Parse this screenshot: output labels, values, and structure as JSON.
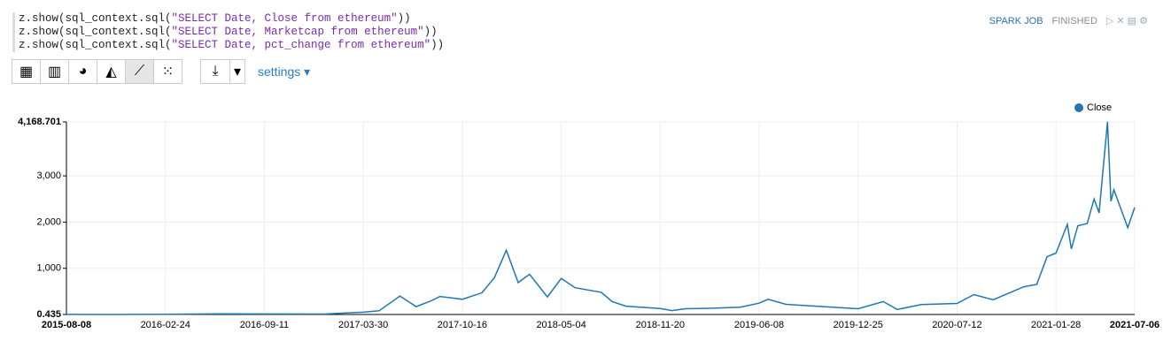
{
  "paragraph": {
    "code": [
      {
        "prefix": "z.show(sql_context.sql(",
        "string": "\"SELECT Date, Close from ethereum\"",
        "suffix": "))"
      },
      {
        "prefix": "z.show(sql_context.sql(",
        "string": "\"SELECT Date, Marketcap from ethereum\"",
        "suffix": "))"
      },
      {
        "prefix": "z.show(sql_context.sql(",
        "string": "\"SELECT Date, pct_change from ethereum\"",
        "suffix": "))"
      }
    ],
    "job": "SPARK JOB",
    "state": "FINISHED",
    "settings": "settings"
  },
  "chart_data": {
    "type": "line",
    "x": [
      "2015-08-08",
      "2015-11-01",
      "2016-02-24",
      "2016-06-15",
      "2016-09-11",
      "2017-01-10",
      "2017-03-30",
      "2017-05-01",
      "2017-06-12",
      "2017-07-15",
      "2017-08-15",
      "2017-09-01",
      "2017-10-16",
      "2017-11-25",
      "2017-12-20",
      "2018-01-13",
      "2018-02-06",
      "2018-03-01",
      "2018-04-06",
      "2018-05-04",
      "2018-06-01",
      "2018-07-24",
      "2018-08-15",
      "2018-09-12",
      "2018-11-20",
      "2018-12-14",
      "2019-01-10",
      "2019-03-01",
      "2019-05-01",
      "2019-06-08",
      "2019-06-26",
      "2019-08-01",
      "2019-10-01",
      "2019-12-25",
      "2020-02-14",
      "2020-03-13",
      "2020-05-01",
      "2020-07-12",
      "2020-08-15",
      "2020-09-23",
      "2020-11-24",
      "2020-12-20",
      "2021-01-10",
      "2021-01-28",
      "2021-02-20",
      "2021-02-28",
      "2021-03-13",
      "2021-04-01",
      "2021-04-15",
      "2021-04-25",
      "2021-05-12",
      "2021-05-19",
      "2021-05-25",
      "2021-06-22",
      "2021-07-06"
    ],
    "series": [
      {
        "name": "Close",
        "color": "#1f77b4",
        "values": [
          3,
          1,
          6,
          14,
          12,
          10,
          50,
          80,
          400,
          170,
          300,
          390,
          330,
          470,
          800,
          1390,
          690,
          870,
          380,
          780,
          580,
          480,
          280,
          180,
          130,
          85,
          125,
          135,
          160,
          245,
          330,
          220,
          180,
          125,
          280,
          110,
          215,
          240,
          430,
          320,
          600,
          650,
          1250,
          1330,
          1950,
          1420,
          1920,
          1970,
          2500,
          2200,
          4168,
          2450,
          2700,
          1880,
          2320
        ]
      }
    ],
    "xlim": [
      "2015-08-08",
      "2021-07-06"
    ],
    "xticks": [
      "2015-08-08",
      "2016-02-24",
      "2016-09-11",
      "2017-03-30",
      "2017-10-16",
      "2018-05-04",
      "2018-11-20",
      "2019-06-08",
      "2019-12-25",
      "2020-07-12",
      "2021-01-28",
      "2021-07-06"
    ],
    "ylim": [
      0.435,
      4168.701
    ],
    "yticks": [
      0.435,
      {
        "value": 1000,
        "label": "1,000"
      },
      {
        "value": 2000,
        "label": "2,000"
      },
      {
        "value": 3000,
        "label": "3,000"
      },
      {
        "value": 4168.701,
        "label": "4,168.701"
      }
    ],
    "grid": true,
    "legend": "top-right"
  }
}
